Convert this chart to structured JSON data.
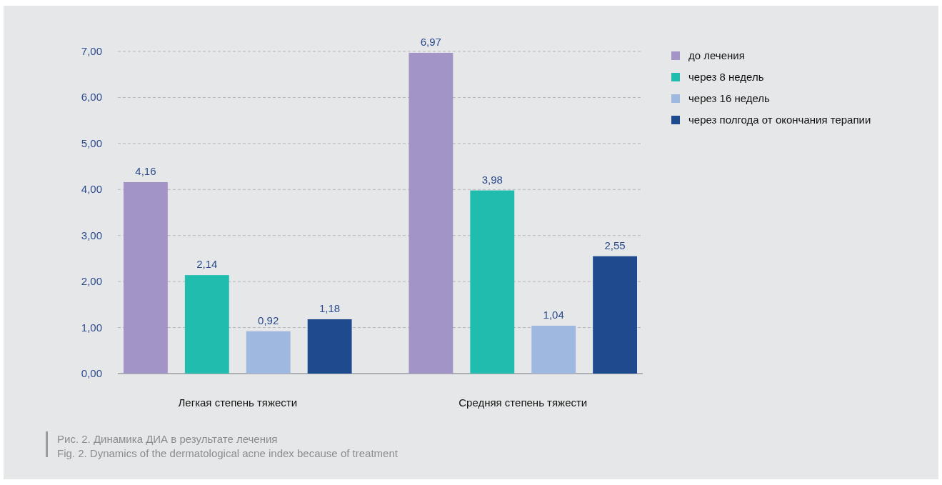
{
  "chart_data": {
    "type": "bar",
    "categories": [
      "Легкая степень тяжести",
      "Средняя степень тяжести"
    ],
    "series": [
      {
        "name": "до лечения",
        "color": "#a294c6",
        "values": [
          4.16,
          6.97
        ],
        "value_labels": [
          "4,16",
          "6,97"
        ]
      },
      {
        "name": "через 8 недель",
        "color": "#20bcad",
        "values": [
          2.14,
          3.98
        ],
        "value_labels": [
          "2,14",
          "3,98"
        ]
      },
      {
        "name": "через 16 недель",
        "color": "#9fb8e0",
        "values": [
          0.92,
          1.04
        ],
        "value_labels": [
          "0,92",
          "1,04"
        ]
      },
      {
        "name": "через полгода от окончания терапии",
        "color": "#1f4b8e",
        "values": [
          1.18,
          2.55
        ],
        "value_labels": [
          "1,18",
          "2,55"
        ]
      }
    ],
    "ylim": [
      0,
      7
    ],
    "yticks": [
      {
        "value": 0,
        "label": "0,00"
      },
      {
        "value": 1,
        "label": "1,00"
      },
      {
        "value": 2,
        "label": "2,00"
      },
      {
        "value": 3,
        "label": "3,00"
      },
      {
        "value": 4,
        "label": "4,00"
      },
      {
        "value": 5,
        "label": "5,00"
      },
      {
        "value": 6,
        "label": "6,00"
      },
      {
        "value": 7,
        "label": "7,00"
      }
    ],
    "grid": "y",
    "legend": "top right",
    "annotations": [
      "Рис. 2. Динамика ДИА в результате лечения",
      "Fig. 2. Dynamics of the dermatological acne index because of treatment"
    ]
  }
}
